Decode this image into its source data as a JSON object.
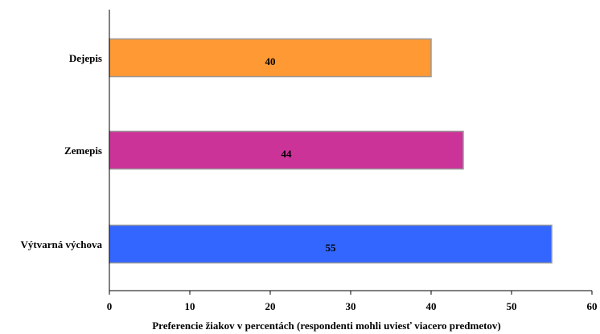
{
  "chart_data": {
    "type": "bar",
    "orientation": "horizontal",
    "categories": [
      "Dejepis",
      "Zemepis",
      "Výtvarná výchova"
    ],
    "values": [
      40,
      44,
      55
    ],
    "colors": [
      "#FF9933",
      "#CC3399",
      "#3366FF"
    ],
    "data_labels": [
      "40",
      "44",
      "55"
    ],
    "title": "",
    "xlabel": "Preferencie žiakov v percentách (respondenti mohli uviesť viacero predmetov)",
    "ylabel": "",
    "xlim": [
      0,
      60
    ],
    "xticks": [
      0,
      10,
      20,
      30,
      40,
      50,
      60
    ],
    "grid": false,
    "legend": "none"
  }
}
